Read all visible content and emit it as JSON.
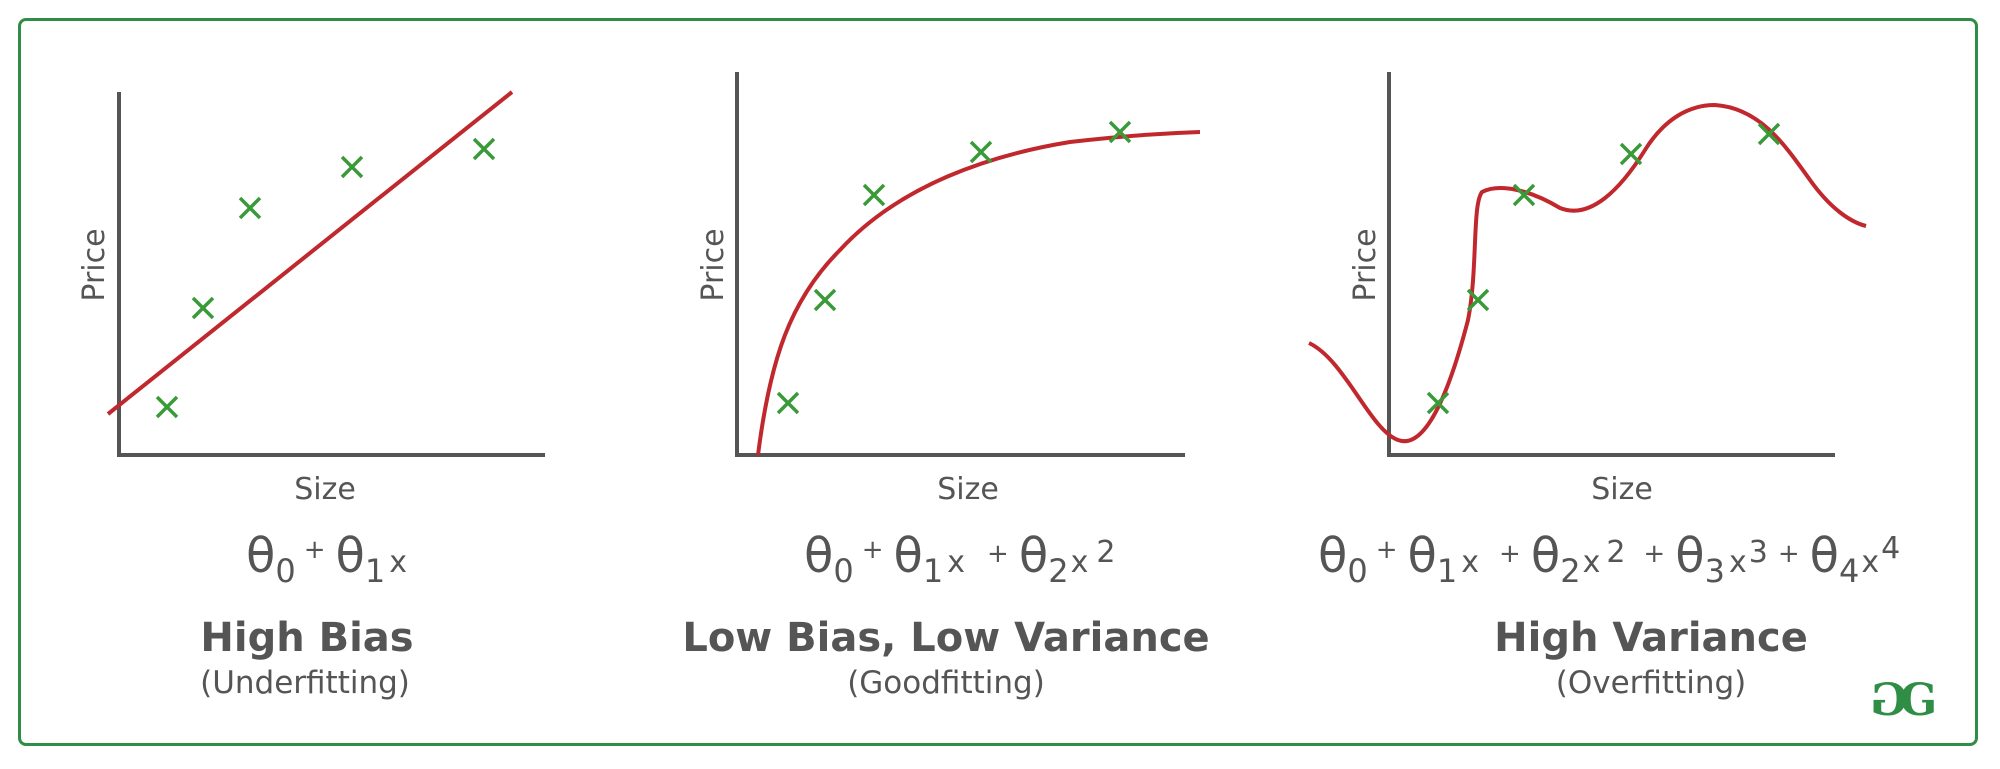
{
  "colors": {
    "border": "#2f8d46",
    "curve": "#c0282d",
    "marker": "#3a9a3a",
    "axis": "#555555",
    "text": "#555555",
    "logo": "#2f8d46"
  },
  "logo_text": "GG",
  "panels": [
    {
      "axis_x_label": "Size",
      "axis_y_label": "Price",
      "eq": {
        "t0": "θ",
        "s0": "0",
        "p1": "+",
        "t1": "θ",
        "s1": "1",
        "x1": "x"
      },
      "title": "High Bias",
      "subtitle": "(Underfitting)"
    },
    {
      "axis_x_label": "Size",
      "axis_y_label": "Price",
      "eq": {
        "t0": "θ",
        "s0": "0",
        "p1": "+",
        "t1": "θ",
        "s1": "1",
        "x1": "x",
        "p2": "+",
        "t2": "θ",
        "s2": "2",
        "x2": "x",
        "e2": "2"
      },
      "title": "Low Bias, Low Variance",
      "subtitle": "(Goodfitting)"
    },
    {
      "axis_x_label": "Size",
      "axis_y_label": "Price",
      "eq": {
        "t0": "θ",
        "s0": "0",
        "p1": "+",
        "t1": "θ",
        "s1": "1",
        "x1": "x",
        "p2": "+",
        "t2": "θ",
        "s2": "2",
        "x2": "x",
        "e2": "2",
        "p3": "+",
        "t3": "θ",
        "s3": "3",
        "x3": "x",
        "e3": "3",
        "p4": "+",
        "t4": "θ",
        "s4": "4",
        "x4": "x",
        "e4": "4"
      },
      "title": "High Variance",
      "subtitle": "(Overfitting)"
    }
  ]
}
